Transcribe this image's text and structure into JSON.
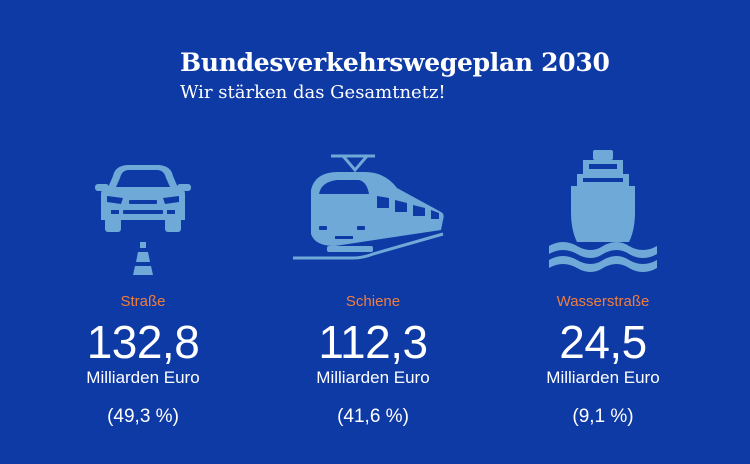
{
  "header": {
    "title": "Bundesverkehrswegeplan 2030",
    "subtitle": "Wir stärken das Gesamtnetz!"
  },
  "colors": {
    "background": "#0e3aa6",
    "icon": "#6fa9d8",
    "label": "#f07d3c",
    "text": "#ffffff"
  },
  "modes": [
    {
      "icon": "car-icon",
      "label": "Straße",
      "value": "132,8",
      "unit": "Milliarden Euro",
      "share": "(49,3 %)"
    },
    {
      "icon": "train-icon",
      "label": "Schiene",
      "value": "112,3",
      "unit": "Milliarden Euro",
      "share": "(41,6 %)"
    },
    {
      "icon": "ship-icon",
      "label": "Wasserstraße",
      "value": "24,5",
      "unit": "Milliarden Euro",
      "share": "(9,1 %)"
    }
  ]
}
